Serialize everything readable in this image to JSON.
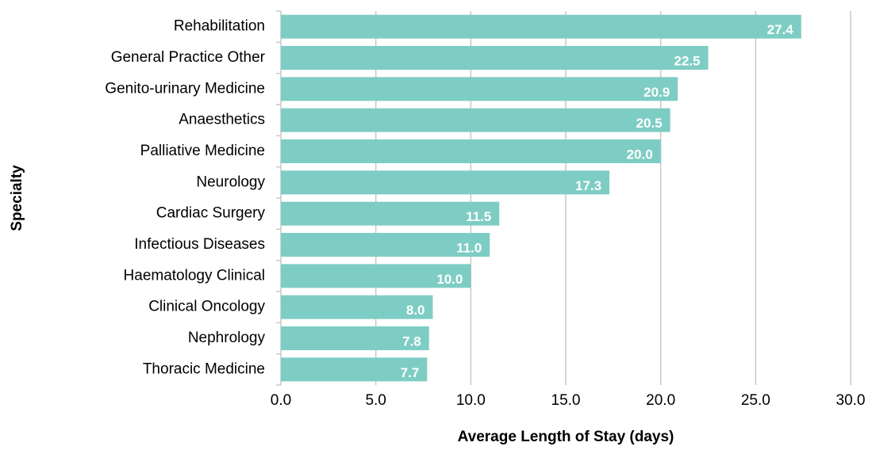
{
  "chart_data": {
    "type": "hbar",
    "x_label": "Average Length of Stay (days)",
    "y_label": "Specialty",
    "categories": [
      "Rehabilitation",
      "General Practice Other",
      "Genito-urinary Medicine",
      "Anaesthetics",
      "Palliative Medicine",
      "Neurology",
      "Cardiac Surgery",
      "Infectious Diseases",
      "Haematology Clinical",
      "Clinical Oncology",
      "Nephrology",
      "Thoracic Medicine"
    ],
    "values": [
      27.4,
      22.5,
      20.9,
      20.5,
      20.0,
      17.3,
      11.5,
      11.0,
      10.0,
      8.0,
      7.8,
      7.7
    ],
    "value_labels": [
      "27.4",
      "22.5",
      "20.9",
      "20.5",
      "20.0",
      "17.3",
      "11.5",
      "11.0",
      "10.0",
      "8.0",
      "7.8",
      "7.7"
    ],
    "color": "#7ecdc4",
    "xlim": [
      0,
      30
    ],
    "xticks": [
      {
        "value": 0,
        "label": "0.0"
      },
      {
        "value": 5,
        "label": "5.0"
      },
      {
        "value": 10,
        "label": "10.0"
      },
      {
        "value": 15,
        "label": "15.0"
      },
      {
        "value": 20,
        "label": "20.0"
      },
      {
        "value": 25,
        "label": "25.0"
      },
      {
        "value": 30,
        "label": "30.0"
      }
    ],
    "grid": true
  }
}
